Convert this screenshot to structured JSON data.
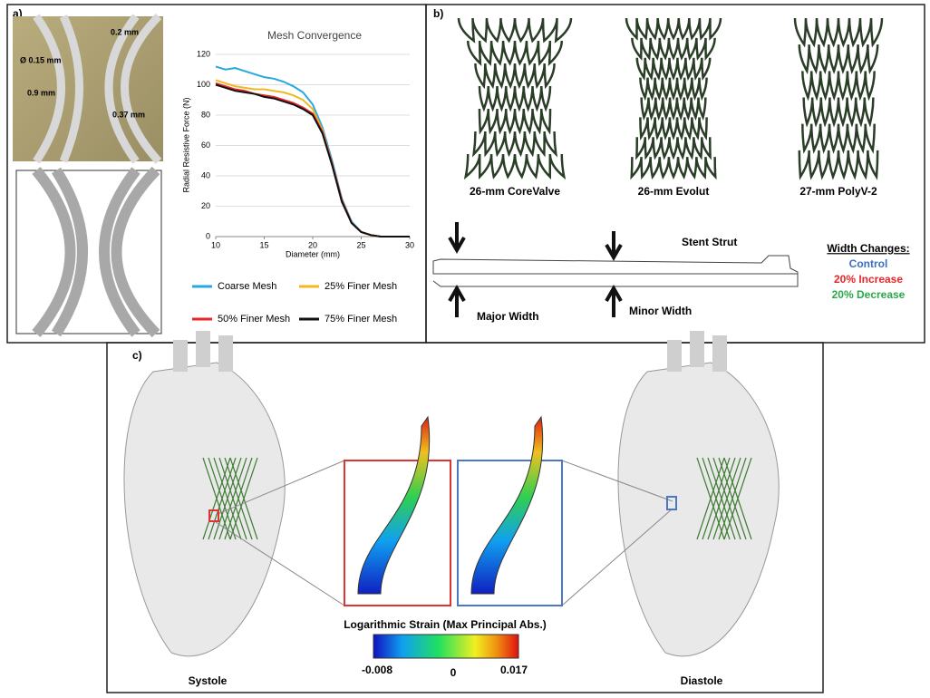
{
  "panels": {
    "a": "a)",
    "b": "b)",
    "c": "c)"
  },
  "photo_annotations": [
    "0.2 mm",
    "Ø 0.15 mm",
    "0.9 mm",
    "0.37 mm"
  ],
  "chart_data": {
    "type": "line",
    "title": "Mesh Convergence",
    "x_label": "Diameter (mm)",
    "y_label": "Radial Resistive Force (N)",
    "x": [
      10,
      11,
      12,
      13,
      14,
      15,
      16,
      17,
      18,
      19,
      20,
      21,
      22,
      23,
      24,
      25,
      26,
      27,
      28,
      29,
      30
    ],
    "series": [
      {
        "name": "Coarse Mesh",
        "color": "#29a8e0",
        "values": [
          112,
          110,
          111,
          109,
          107,
          105,
          104,
          102,
          99,
          95,
          87,
          72,
          50,
          25,
          10,
          3,
          1,
          0,
          0,
          0,
          0
        ]
      },
      {
        "name": "25% Finer Mesh",
        "color": "#f2b822",
        "values": [
          103,
          101,
          99,
          98,
          97,
          97,
          96,
          95,
          93,
          90,
          84,
          70,
          48,
          24,
          9,
          3,
          1,
          0,
          0,
          0,
          0
        ]
      },
      {
        "name": "50% Finer Mesh",
        "color": "#e8262a",
        "values": [
          101,
          99,
          97,
          96,
          94,
          93,
          92,
          90,
          88,
          85,
          81,
          69,
          48,
          24,
          9,
          3,
          1,
          0,
          0,
          0,
          0
        ]
      },
      {
        "name": "75% Finer Mesh",
        "color": "#111111",
        "values": [
          100,
          98,
          96,
          95,
          94,
          92,
          91,
          89,
          87,
          84,
          80,
          68,
          47,
          23,
          9,
          3,
          1,
          0,
          0,
          0,
          0
        ]
      }
    ],
    "xlim": [
      10,
      30
    ],
    "xticks": [
      10,
      15,
      20,
      25,
      30
    ],
    "ylim": [
      0,
      120
    ],
    "yticks": [
      0,
      20,
      40,
      60,
      80,
      100,
      120
    ],
    "grid": true
  },
  "stents": [
    "26-mm CoreValve",
    "26-mm Evolut",
    "27-mm PolyV-2"
  ],
  "strut": {
    "title": "Stent Strut",
    "major": "Major Width",
    "minor": "Minor Width"
  },
  "width_changes": {
    "title": "Width Changes:",
    "items": [
      {
        "label": "Control",
        "color": "#3a6fc4"
      },
      {
        "label": "20% Increase",
        "color": "#e8262a"
      },
      {
        "label": "20% Decrease",
        "color": "#2aa84a"
      }
    ]
  },
  "strain": {
    "title": "Logarithmic Strain (Max Principal Abs.)",
    "ticks": [
      -0.008,
      0,
      0.017
    ]
  },
  "phases": [
    "Systole",
    "Diastole"
  ]
}
